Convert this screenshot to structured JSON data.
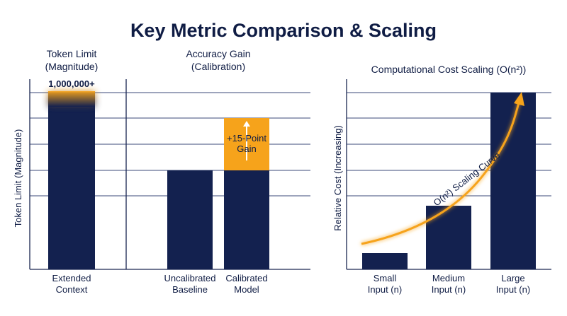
{
  "title": "Key Metric Comparison & Scaling",
  "colors": {
    "navy": "#13214f",
    "orange": "#f6a31b",
    "text": "#0f1c44",
    "annotation": "#e8940e"
  },
  "chart_data": [
    {
      "type": "bar",
      "title": "Token Limit\n(Magnitude)",
      "ylabel": "Token Limit (Magnitude)",
      "categories": [
        "Extended\nContext"
      ],
      "values": [
        1000000
      ],
      "ylim": [
        0,
        1000000
      ],
      "data_labels": [
        "1,000,000+"
      ],
      "grid": true
    },
    {
      "type": "bar",
      "title": "Accuracy Gain\n(Calibration)",
      "categories": [
        "Uncalibrated\nBaseline",
        "Calibrated\nModel"
      ],
      "values": [
        60,
        60
      ],
      "stacked_gain": [
        0,
        15
      ],
      "ylim": [
        0,
        100
      ],
      "annotation": "+15-Point\nGain",
      "grid": true
    },
    {
      "type": "bar",
      "title": "Computational Cost Scaling (O(n²))",
      "ylabel": "Relative Cost (Increasing)",
      "categories": [
        "Small\nInput (n)",
        "Medium\nInput (n)",
        "Large\nInput (n)"
      ],
      "values": [
        1,
        4,
        10
      ],
      "ylim": [
        0,
        10.3
      ],
      "curve_label": "O(n²) Scaling Curve",
      "grid": true
    }
  ]
}
